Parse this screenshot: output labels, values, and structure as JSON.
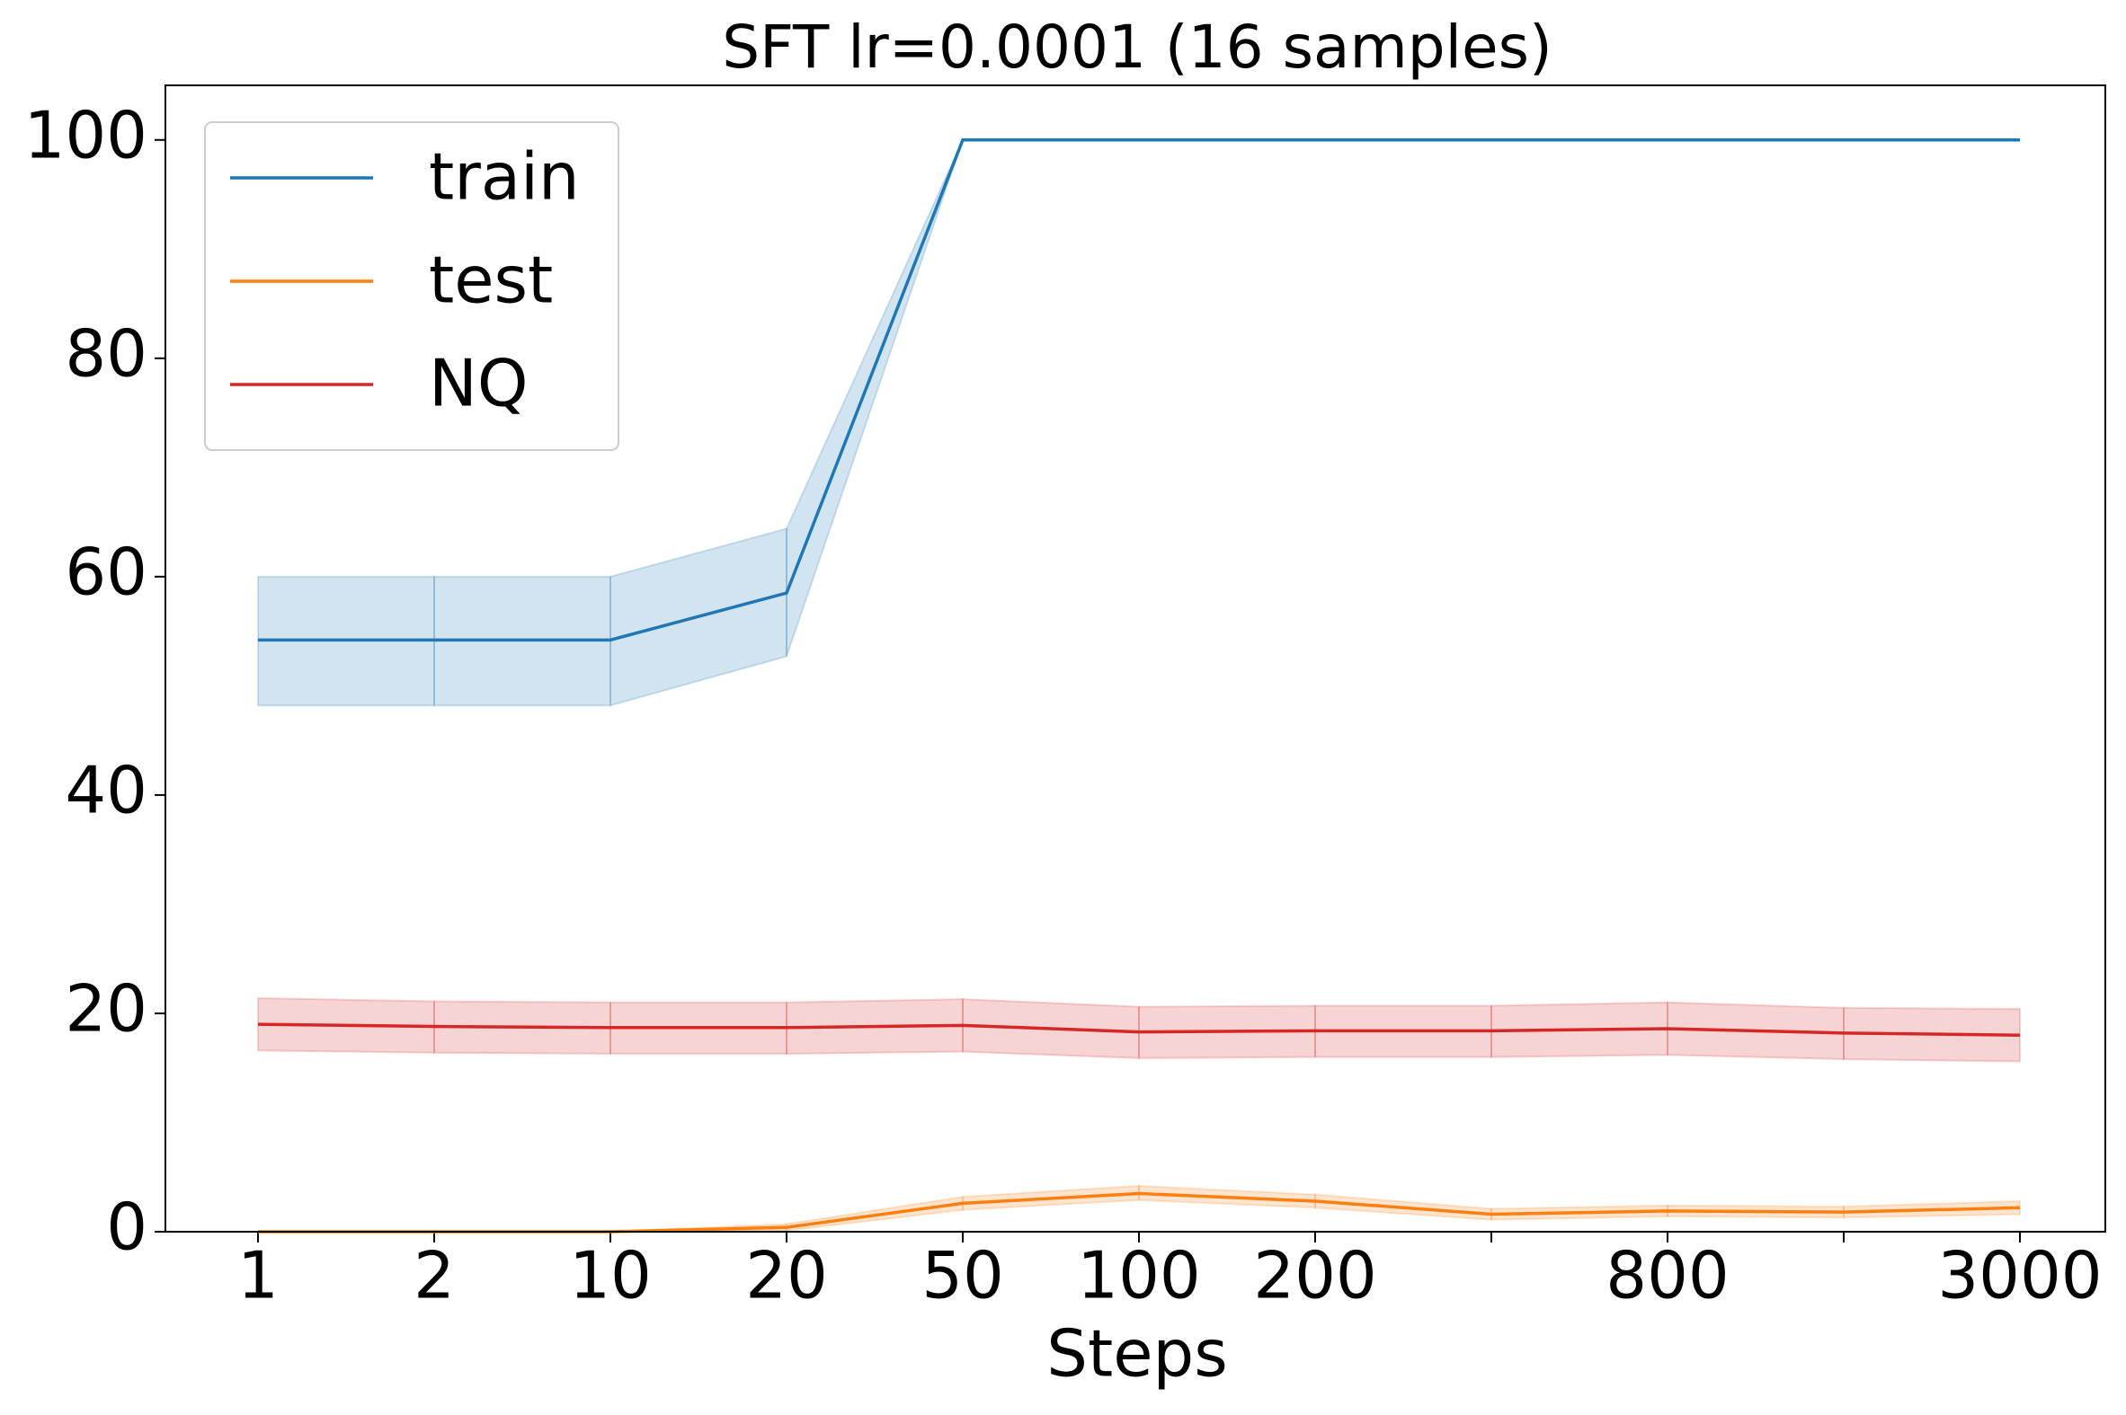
{
  "chart_data": {
    "type": "line",
    "title": "SFT lr=0.0001  (16 samples)",
    "x_label": "Steps",
    "categories": [
      "1",
      "2",
      "10",
      "20",
      "50",
      "100",
      "200",
      null,
      "800",
      null,
      "3000"
    ],
    "ylim": [
      0,
      105
    ],
    "yticks": [
      0,
      20,
      40,
      60,
      80,
      100
    ],
    "legend": "upper left",
    "grid": false,
    "series": [
      {
        "name": "train",
        "color": "#1f77b4",
        "values": [
          54.2,
          54.2,
          54.2,
          58.5,
          100,
          100,
          100,
          100,
          100,
          100,
          100
        ],
        "lower": [
          48.2,
          48.2,
          48.2,
          52.7,
          100,
          100,
          100,
          100,
          100,
          100,
          100
        ],
        "upper": [
          60,
          60,
          60,
          64.4,
          100,
          100,
          100,
          100,
          100,
          100,
          100
        ]
      },
      {
        "name": "test",
        "color": "#ff7f0e",
        "values": [
          0,
          0,
          0,
          0.4,
          2.6,
          3.5,
          2.8,
          1.6,
          1.9,
          1.8,
          2.2
        ],
        "lower": [
          0,
          0,
          0,
          0.1,
          2.0,
          2.9,
          2.2,
          1.1,
          1.4,
          1.3,
          1.6
        ],
        "upper": [
          0,
          0,
          0,
          0.7,
          3.2,
          4.2,
          3.4,
          2.1,
          2.4,
          2.3,
          2.8
        ]
      },
      {
        "name": "NQ",
        "color": "#d62728",
        "values": [
          19.0,
          18.8,
          18.7,
          18.7,
          18.9,
          18.3,
          18.4,
          18.4,
          18.6,
          18.2,
          18.0
        ],
        "lower": [
          16.6,
          16.4,
          16.3,
          16.3,
          16.5,
          15.9,
          16.0,
          16.0,
          16.2,
          15.8,
          15.6
        ],
        "upper": [
          21.4,
          21.1,
          21.0,
          21.0,
          21.3,
          20.6,
          20.7,
          20.7,
          21.0,
          20.5,
          20.4
        ]
      }
    ]
  }
}
